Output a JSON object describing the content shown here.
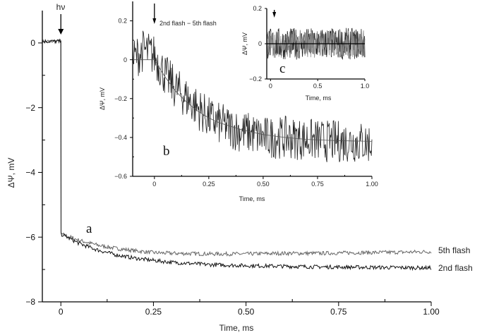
{
  "chart_data": [
    {
      "id": "a",
      "type": "line",
      "panel_label": "a",
      "xlabel": "Time, ms",
      "ylabel": "ΔΨ, mV",
      "xlim": [
        -0.05,
        1.0
      ],
      "ylim": [
        -8,
        1
      ],
      "xticks": [
        0,
        0.25,
        0.5,
        0.75,
        1.0
      ],
      "xtick_labels": [
        "0",
        "0.25",
        "0.50",
        "0.75",
        "1.00"
      ],
      "yticks": [
        0,
        -2,
        -4,
        -6,
        -8
      ],
      "ytick_labels": [
        "0",
        "−2",
        "−4",
        "−6",
        "−8"
      ],
      "annotation": "hν",
      "annotation_x": 0,
      "grid": false,
      "series": [
        {
          "name": "5th flash",
          "color": "#666666",
          "x": [
            -0.05,
            -0.025,
            -0.001,
            0,
            0.025,
            0.05,
            0.1,
            0.15,
            0.2,
            0.25,
            0.3,
            0.4,
            0.5,
            0.6,
            0.7,
            0.8,
            0.9,
            1.0
          ],
          "y": [
            0.05,
            0.05,
            0.05,
            -5.9,
            -6.0,
            -6.1,
            -6.25,
            -6.35,
            -6.42,
            -6.48,
            -6.5,
            -6.52,
            -6.52,
            -6.5,
            -6.5,
            -6.48,
            -6.47,
            -6.45
          ]
        },
        {
          "name": "2nd flash",
          "color": "#111111",
          "x": [
            -0.05,
            -0.025,
            -0.001,
            0,
            0.025,
            0.05,
            0.1,
            0.15,
            0.2,
            0.25,
            0.3,
            0.4,
            0.5,
            0.6,
            0.7,
            0.8,
            0.9,
            1.0
          ],
          "y": [
            0.05,
            0.05,
            0.05,
            -5.9,
            -6.05,
            -6.2,
            -6.4,
            -6.55,
            -6.65,
            -6.72,
            -6.78,
            -6.85,
            -6.88,
            -6.9,
            -6.92,
            -6.93,
            -6.94,
            -6.95
          ]
        }
      ]
    },
    {
      "id": "b",
      "type": "line",
      "panel_label": "b",
      "xlabel": "Time, ms",
      "ylabel": "ΔΨ, mV",
      "xlim": [
        -0.1,
        1.0
      ],
      "ylim": [
        -0.6,
        0.3
      ],
      "xticks": [
        0,
        0.25,
        0.5,
        0.75,
        1.0
      ],
      "xtick_labels": [
        "0",
        "0.25",
        "0.50",
        "0.75",
        "1.00"
      ],
      "yticks": [
        0.2,
        0,
        -0.2,
        -0.4,
        -0.6
      ],
      "ytick_labels": [
        "0.2",
        "0",
        "−0.2",
        "−0.4",
        "−0.6"
      ],
      "annotation": "2nd flash − 5th flash",
      "annotation_x": 0,
      "series": [
        {
          "role": "data",
          "color": "#222222",
          "x": [
            -0.1,
            -0.05,
            0,
            0.05,
            0.1,
            0.15,
            0.2,
            0.25,
            0.3,
            0.35,
            0.4,
            0.45,
            0.5,
            0.6,
            0.7,
            0.8,
            0.9,
            1.0
          ],
          "y": [
            0.0,
            0.05,
            0.02,
            -0.08,
            -0.15,
            -0.2,
            -0.25,
            -0.3,
            -0.33,
            -0.35,
            -0.37,
            -0.38,
            -0.4,
            -0.4,
            -0.41,
            -0.42,
            -0.42,
            -0.43
          ]
        },
        {
          "role": "fit",
          "color": "#555555",
          "x": [
            -0.1,
            0,
            0.05,
            0.1,
            0.15,
            0.2,
            0.25,
            0.3,
            0.4,
            0.5,
            0.6,
            0.7,
            0.8,
            0.9,
            1.0
          ],
          "y": [
            0,
            0,
            -0.09,
            -0.165,
            -0.22,
            -0.265,
            -0.3,
            -0.325,
            -0.36,
            -0.385,
            -0.4,
            -0.41,
            -0.415,
            -0.418,
            -0.42
          ]
        }
      ]
    },
    {
      "id": "c",
      "type": "line",
      "panel_label": "c",
      "xlabel": "Time, ms",
      "ylabel": "ΔΨ, mV",
      "xlim": [
        -0.04,
        1.0
      ],
      "ylim": [
        -0.2,
        0.2
      ],
      "xticks": [
        0,
        0.5,
        1.0
      ],
      "xtick_labels": [
        "0",
        "0.5",
        "1.0"
      ],
      "yticks": [
        0.2,
        0,
        -0.2
      ],
      "ytick_labels": [
        "0.2",
        "0",
        "−0.2"
      ],
      "annotation_x": 0.04,
      "series": [
        {
          "role": "data",
          "color": "#222222",
          "x": [
            -0.04,
            1.0
          ],
          "y": [
            0,
            0
          ]
        },
        {
          "role": "baseline",
          "color": "#000000",
          "x": [
            -0.04,
            1.0
          ],
          "y": [
            0,
            0
          ]
        }
      ]
    }
  ]
}
